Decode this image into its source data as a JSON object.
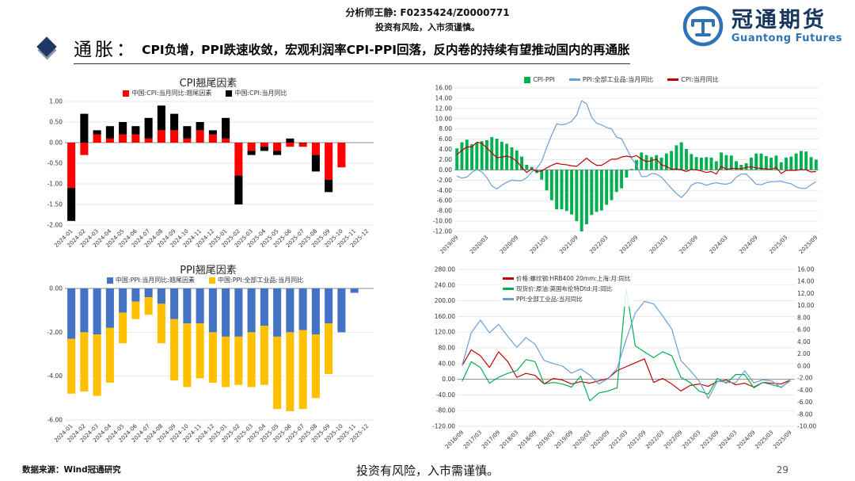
{
  "header": {
    "analyst_line": "分析师王静: F0235424/Z0000771",
    "risk_line": "投资有风险，入市须谨慎。"
  },
  "logo": {
    "name_cn": "冠通期货",
    "name_en": "Guantong Futures",
    "brand_navy": "#17365D",
    "brand_blue": "#2E74B5"
  },
  "title": {
    "prefix": "通胀：",
    "text": "CPI负增，PPI跌速收敛，宏观利润率CPI-PPI回落，反内卷的持续有望推动国内的再通胀"
  },
  "footer": {
    "source": "数据来源：Wind冠通研究",
    "risk": "投资有风险，入市需谨慎。",
    "page": "29"
  },
  "chart_data": [
    {
      "type": "bar",
      "title": "CPI翘尾因素",
      "stacked": true,
      "left_axis": {
        "min": -2,
        "max": 1,
        "step": 0.5
      },
      "categories": [
        "2024-01",
        "2024-02",
        "2024-03",
        "2024-04",
        "2024-05",
        "2024-06",
        "2024-07",
        "2024-08",
        "2024-09",
        "2024-10",
        "2024-11",
        "2024-12",
        "2025-01",
        "2025-02",
        "2025-03",
        "2025-04",
        "2025-05",
        "2025-06",
        "2025-07",
        "2025-08",
        "2025-09",
        "2025-10",
        "2025-11",
        "2025-12"
      ],
      "series": [
        {
          "name": "中国:CPI:当月同比:翘尾因素",
          "kind": "bar",
          "axis": "left",
          "color": "#FF0000",
          "values": [
            -1.1,
            -0.3,
            0.2,
            0.1,
            0.2,
            0.2,
            0.1,
            0.3,
            0.3,
            0.1,
            0.3,
            0.2,
            0.1,
            -0.8,
            -0.2,
            -0.1,
            -0.2,
            -0.1,
            -0.1,
            -0.3,
            -0.9,
            -0.6,
            null,
            null
          ]
        },
        {
          "name": "中国:CPI:当月同比",
          "kind": "bar",
          "axis": "left",
          "color": "#000000",
          "values": [
            -0.8,
            0.7,
            0.1,
            0.3,
            0.3,
            0.2,
            0.5,
            0.6,
            0.4,
            0.3,
            0.2,
            0.1,
            0.5,
            -0.7,
            -0.1,
            -0.1,
            -0.1,
            0.1,
            0.0,
            -0.4,
            -0.3,
            null,
            null,
            null
          ]
        }
      ]
    },
    {
      "type": "bar",
      "title": "",
      "stacked": false,
      "left_axis": {
        "min": -12,
        "max": 16,
        "step": 2
      },
      "categories": [
        "2019/09",
        "2019/10",
        "2019/11",
        "2019/12",
        "2020/01",
        "2020/02",
        "2020/03",
        "2020/04",
        "2020/05",
        "2020/06",
        "2020/07",
        "2020/08",
        "2020/09",
        "2020/10",
        "2020/11",
        "2020/12",
        "2021/01",
        "2021/02",
        "2021/03",
        "2021/04",
        "2021/05",
        "2021/06",
        "2021/07",
        "2021/08",
        "2021/09",
        "2021/10",
        "2021/11",
        "2021/12",
        "2022/01",
        "2022/02",
        "2022/03",
        "2022/04",
        "2022/05",
        "2022/06",
        "2022/07",
        "2022/08",
        "2022/09",
        "2022/10",
        "2022/11",
        "2022/12",
        "2023/01",
        "2023/02",
        "2023/03",
        "2023/04",
        "2023/05",
        "2023/06",
        "2023/07",
        "2023/08",
        "2023/09",
        "2023/10",
        "2023/11",
        "2023/12",
        "2024/01",
        "2024/02",
        "2024/03",
        "2024/04",
        "2024/05",
        "2024/06",
        "2024/07",
        "2024/08",
        "2024/09",
        "2024/10",
        "2024/11",
        "2024/12",
        "2025/01",
        "2025/02",
        "2025/03",
        "2025/04",
        "2025/05",
        "2025/06",
        "2025/07",
        "2025/08",
        "2025/09"
      ],
      "xticks": [
        "2019/09",
        "2020/03",
        "2020/09",
        "2021/03",
        "2021/09",
        "2022/03",
        "2022/09",
        "2023/03",
        "2023/09",
        "2024/03",
        "2024/09",
        "2025/03",
        "2025/09"
      ],
      "series": [
        {
          "name": "CPI-PPI",
          "kind": "bar",
          "axis": "left",
          "color": "#00B050",
          "values": [
            4.2,
            5.4,
            5.9,
            5.0,
            5.3,
            5.6,
            5.8,
            6.4,
            6.1,
            5.5,
            5.1,
            4.4,
            3.8,
            2.6,
            1.0,
            0.6,
            -0.6,
            -1.9,
            -4.0,
            -5.9,
            -7.7,
            -7.7,
            -8.0,
            -8.7,
            -10.0,
            -12.0,
            -10.6,
            -8.8,
            -8.2,
            -7.9,
            -6.8,
            -5.9,
            -4.3,
            -3.6,
            -1.5,
            0.2,
            1.9,
            3.4,
            2.9,
            2.5,
            2.9,
            2.4,
            3.2,
            3.7,
            4.8,
            5.4,
            4.1,
            3.1,
            2.5,
            2.4,
            2.5,
            2.4,
            1.7,
            3.4,
            2.9,
            2.8,
            1.7,
            1.0,
            1.3,
            2.4,
            3.2,
            3.2,
            2.7,
            2.4,
            2.8,
            1.5,
            2.4,
            2.6,
            3.2,
            3.7,
            3.6,
            2.5,
            2.0
          ]
        },
        {
          "name": "PPI:全部工业品:当月同比",
          "kind": "line",
          "axis": "left",
          "color": "#6A9FD4",
          "values": [
            -1.2,
            -1.6,
            -1.4,
            -0.5,
            0.1,
            -0.4,
            -1.5,
            -3.1,
            -3.7,
            -3.0,
            -2.4,
            -2.0,
            -2.1,
            -2.1,
            -1.5,
            -0.4,
            0.3,
            1.7,
            4.4,
            6.8,
            9.0,
            8.8,
            9.0,
            9.5,
            10.7,
            13.5,
            12.9,
            10.3,
            9.1,
            8.8,
            8.3,
            8.0,
            6.4,
            6.1,
            4.2,
            2.3,
            0.9,
            -1.3,
            -1.3,
            -0.7,
            -0.8,
            -1.4,
            -2.5,
            -3.6,
            -4.6,
            -5.4,
            -4.4,
            -3.0,
            -2.5,
            -2.6,
            -3.0,
            -2.7,
            -2.5,
            -2.7,
            -2.8,
            -2.5,
            -1.4,
            -0.8,
            -0.8,
            -1.8,
            -2.8,
            -2.9,
            -2.5,
            -2.3,
            -2.3,
            -2.2,
            -2.5,
            -2.7,
            -3.3,
            -3.6,
            -3.6,
            -2.9,
            -2.3
          ]
        },
        {
          "name": "CPI:当月同比",
          "kind": "line",
          "axis": "left",
          "color": "#C00000",
          "values": [
            3.0,
            3.8,
            4.5,
            4.5,
            5.4,
            5.2,
            4.3,
            3.3,
            2.4,
            2.5,
            2.7,
            2.4,
            1.7,
            0.5,
            -0.5,
            0.2,
            -0.3,
            -0.2,
            0.4,
            0.9,
            1.3,
            1.1,
            1.0,
            0.8,
            0.7,
            1.5,
            2.3,
            1.5,
            0.9,
            0.9,
            1.5,
            2.1,
            2.1,
            2.5,
            2.7,
            2.5,
            2.8,
            2.1,
            1.6,
            1.8,
            2.1,
            1.0,
            0.7,
            0.1,
            0.2,
            0.0,
            -0.3,
            0.1,
            0.0,
            -0.2,
            -0.5,
            -0.3,
            -0.8,
            0.7,
            0.1,
            0.3,
            0.3,
            0.2,
            0.5,
            0.6,
            0.4,
            0.3,
            0.2,
            0.1,
            0.5,
            -0.7,
            -0.1,
            -0.1,
            -0.1,
            0.1,
            0.0,
            -0.4,
            -0.3
          ]
        }
      ]
    },
    {
      "type": "bar",
      "title": "PPI翘尾因素",
      "stacked": true,
      "left_axis": {
        "min": -6,
        "max": 0,
        "step": 2
      },
      "categories": [
        "2024-01",
        "2024-02",
        "2024-03",
        "2024-04",
        "2024-05",
        "2024-06",
        "2024-07",
        "2024-08",
        "2024-09",
        "2024-10",
        "2024-11",
        "2024-12",
        "2025-01",
        "2025-02",
        "2025-03",
        "2025-04",
        "2025-05",
        "2025-06",
        "2025-07",
        "2025-08",
        "2025-09",
        "2025-10",
        "2025-11",
        "2025-12"
      ],
      "series": [
        {
          "name": "中国:PPI:当月同比:翘尾因素",
          "kind": "bar",
          "axis": "left",
          "color": "#4472C4",
          "values": [
            -2.3,
            -2.0,
            -2.1,
            -1.8,
            -1.1,
            -0.6,
            -0.4,
            -0.7,
            -1.4,
            -1.6,
            -1.6,
            -2.0,
            -2.2,
            -2.2,
            -2.0,
            -1.7,
            -2.2,
            -2.0,
            -1.9,
            -2.1,
            -1.6,
            -2.0,
            -0.2,
            null
          ]
        },
        {
          "name": "中国:PPI:全部工业品:当月同比",
          "kind": "bar",
          "axis": "left",
          "color": "#FFC000",
          "values": [
            -2.5,
            -2.7,
            -2.8,
            -2.5,
            -1.4,
            -0.8,
            -0.8,
            -1.8,
            -2.8,
            -2.9,
            -2.5,
            -2.3,
            -2.3,
            -2.2,
            -2.5,
            -2.7,
            -3.3,
            -3.6,
            -3.6,
            -2.9,
            -2.3,
            null,
            null,
            null
          ]
        }
      ]
    },
    {
      "type": "line",
      "title": "",
      "stacked": false,
      "left_axis": {
        "min": -120,
        "max": 280,
        "step": 40
      },
      "right_axis": {
        "min": -10,
        "max": 16,
        "step": 2
      },
      "categories": [
        "2016/09",
        "2016/12",
        "2017/03",
        "2017/06",
        "2017/09",
        "2017/12",
        "2018/03",
        "2018/06",
        "2018/09",
        "2018/12",
        "2019/03",
        "2019/06",
        "2019/09",
        "2019/12",
        "2020/03",
        "2020/06",
        "2020/09",
        "2020/12",
        "2021/03",
        "2021/06",
        "2021/09",
        "2021/12",
        "2022/03",
        "2022/06",
        "2022/09",
        "2022/12",
        "2023/03",
        "2023/06",
        "2023/09",
        "2023/12",
        "2024/03",
        "2024/06",
        "2024/09",
        "2024/12",
        "2025/03",
        "2025/06",
        "2025/09"
      ],
      "xticks": [
        "2016/09",
        "2017/03",
        "2017/09",
        "2018/03",
        "2018/09",
        "2019/03",
        "2019/09",
        "2020/03",
        "2020/09",
        "2021/03",
        "2021/09",
        "2022/03",
        "2022/09",
        "2023/03",
        "2023/09",
        "2024/03",
        "2024/09",
        "2025/03",
        "2025/09"
      ],
      "series": [
        {
          "name": "价格:螺纹钢:HRB400 20mm:上海:月:同比",
          "kind": "line",
          "axis": "left",
          "color": "#C00000",
          "values": [
            35,
            75,
            60,
            30,
            70,
            45,
            5,
            15,
            10,
            -12,
            2,
            -2,
            -12,
            -6,
            -10,
            -4,
            2,
            22,
            32,
            42,
            52,
            -8,
            2,
            -12,
            -30,
            -16,
            -12,
            -18,
            -6,
            -2,
            -14,
            -10,
            -20,
            -8,
            -10,
            -12,
            -2
          ]
        },
        {
          "name": "现货价:原油:英国布伦特Dtd:月:同比",
          "kind": "line",
          "axis": "left",
          "color": "#00B050",
          "values": [
            -5,
            45,
            30,
            -10,
            5,
            15,
            22,
            50,
            45,
            -12,
            -8,
            -12,
            -20,
            8,
            -55,
            -35,
            -30,
            -22,
            230,
            85,
            70,
            55,
            70,
            60,
            5,
            -8,
            -30,
            -38,
            2,
            -10,
            12,
            12,
            -22,
            -8,
            -14,
            -20,
            -4
          ]
        },
        {
          "name": "PPI:全部工业品:当月同比",
          "kind": "line",
          "axis": "right",
          "color": "#6A9FD4",
          "values": [
            0.1,
            5.5,
            7.6,
            5.5,
            6.9,
            4.9,
            3.1,
            4.7,
            3.6,
            0.9,
            0.4,
            0.0,
            -1.2,
            -0.5,
            -1.5,
            -3.0,
            -2.1,
            -0.4,
            4.4,
            8.8,
            10.7,
            10.3,
            8.3,
            6.1,
            0.9,
            -0.7,
            -2.5,
            -5.4,
            -2.5,
            -2.7,
            -2.8,
            -0.8,
            -2.8,
            -2.3,
            -2.5,
            -3.6,
            -2.3
          ]
        }
      ]
    }
  ]
}
